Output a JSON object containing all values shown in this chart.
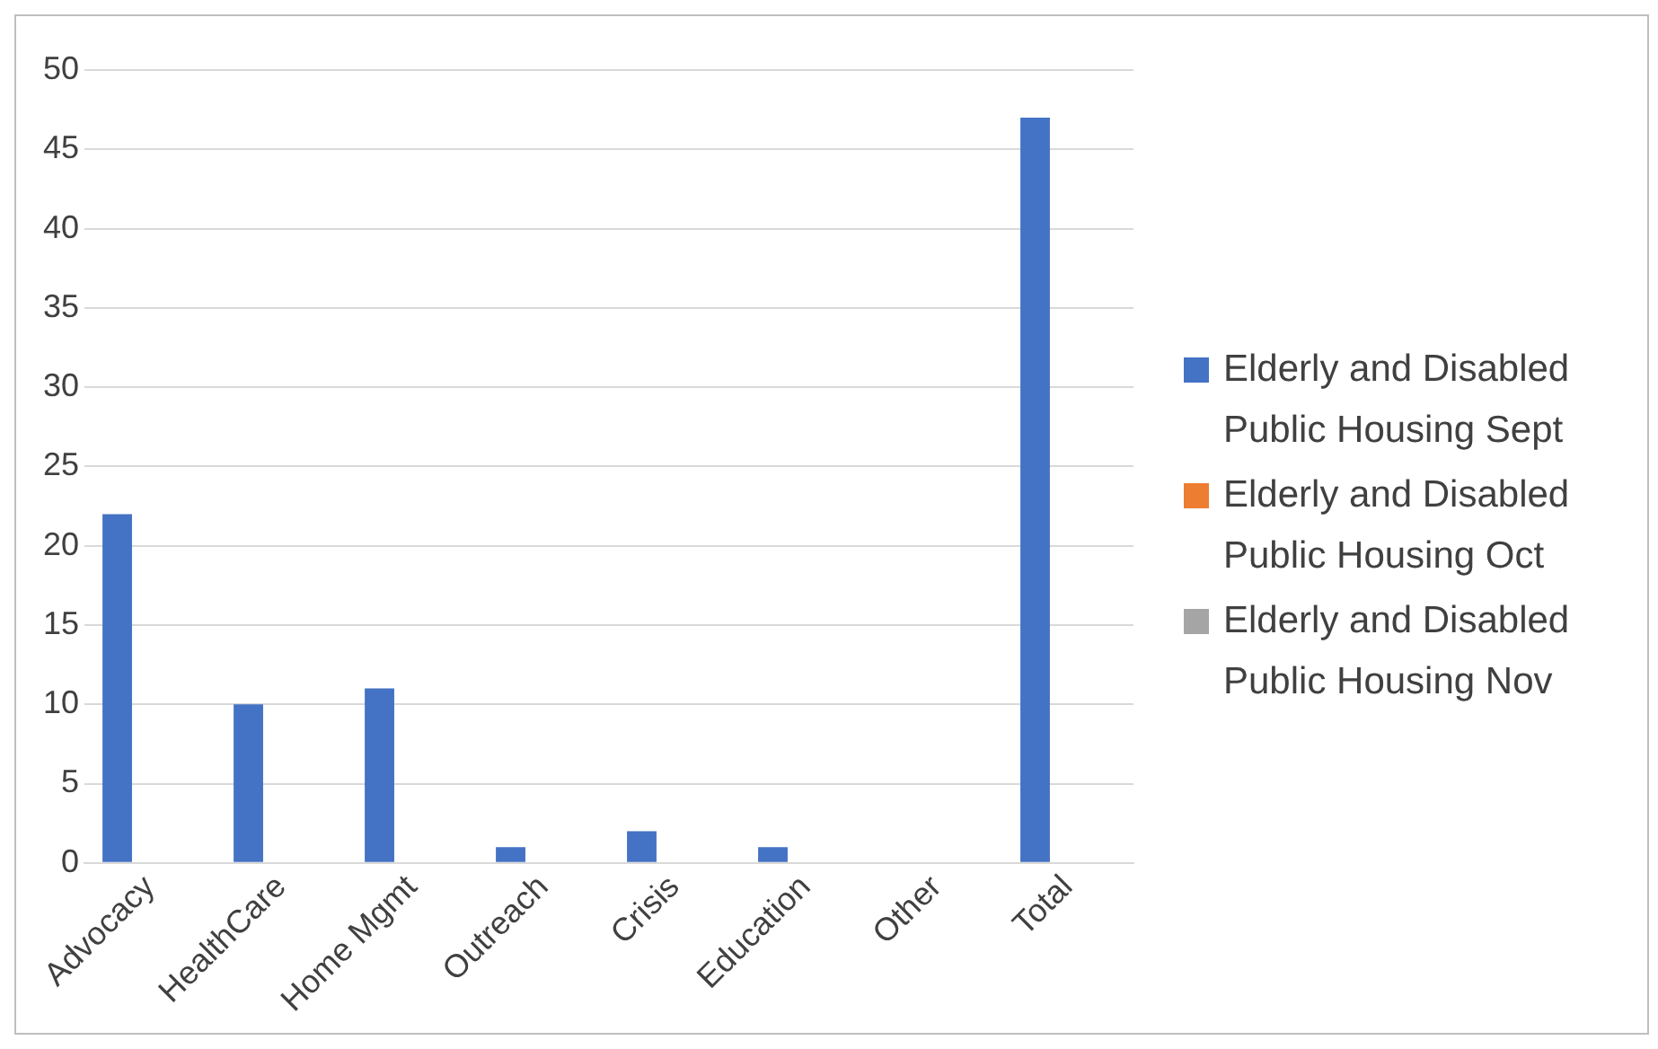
{
  "chart_data": {
    "type": "bar",
    "categories": [
      "Advocacy",
      "HealthCare",
      "Home Mgmt",
      "Outreach",
      "Crisis",
      "Education",
      "Other",
      "Total"
    ],
    "series": [
      {
        "name": "Elderly and Disabled Public Housing Sept",
        "color": "#4472c4",
        "values": [
          22,
          10,
          11,
          1,
          2,
          1,
          0,
          47
        ]
      },
      {
        "name": "Elderly and Disabled Public Housing Oct",
        "color": "#ed7d31",
        "values": [
          null,
          null,
          null,
          null,
          null,
          null,
          null,
          null
        ]
      },
      {
        "name": "Elderly and Disabled Public Housing Nov",
        "color": "#a5a5a5",
        "values": [
          null,
          null,
          null,
          null,
          null,
          null,
          null,
          null
        ]
      }
    ],
    "ylim": [
      0,
      50
    ],
    "yticks": [
      0,
      5,
      10,
      15,
      20,
      25,
      30,
      35,
      40,
      45,
      50
    ],
    "grid": "y",
    "legend": "right"
  }
}
